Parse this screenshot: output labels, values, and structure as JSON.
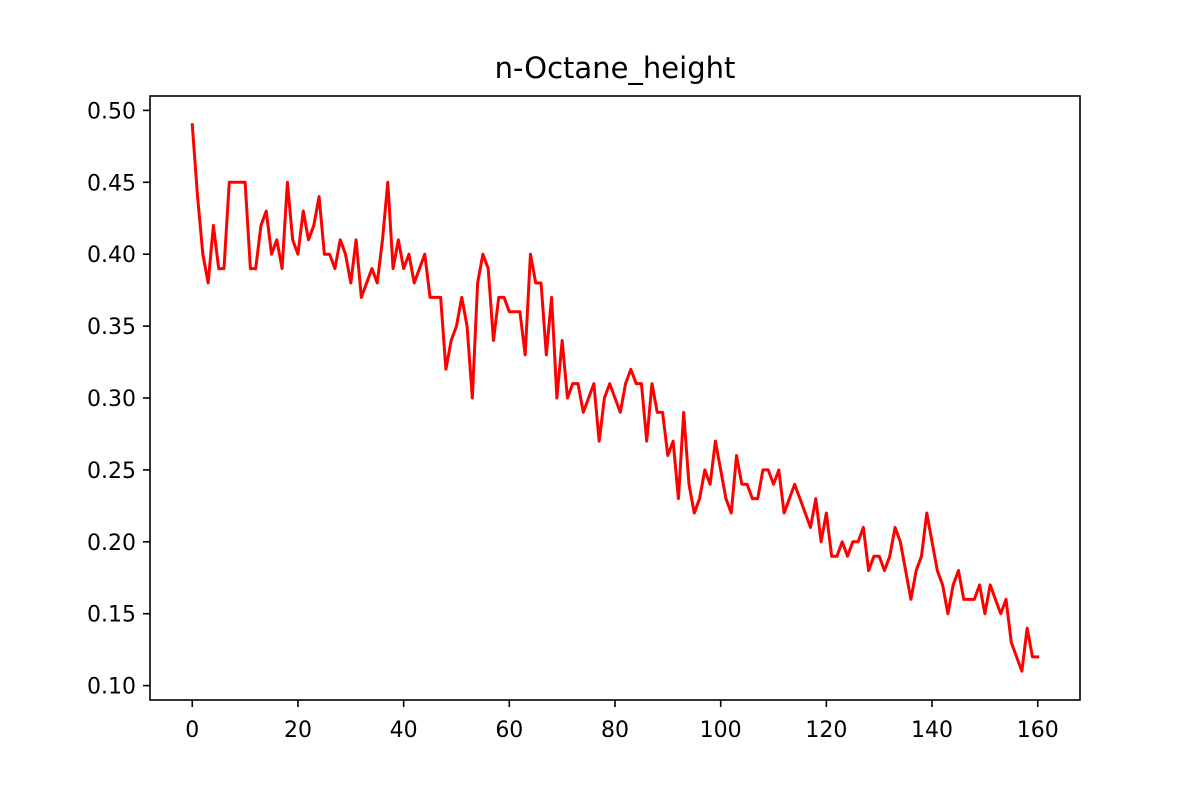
{
  "chart_data": {
    "type": "line",
    "title": "n-Octane_height",
    "xlabel": "",
    "ylabel": "",
    "xlim": [
      -8,
      168
    ],
    "ylim": [
      0.09,
      0.51
    ],
    "xticks": [
      0,
      20,
      40,
      60,
      80,
      100,
      120,
      140,
      160
    ],
    "yticks": [
      0.1,
      0.15,
      0.2,
      0.25,
      0.3,
      0.35,
      0.4,
      0.45,
      0.5
    ],
    "grid": false,
    "series": [
      {
        "color": "#ff0000",
        "x": [
          0,
          1,
          2,
          3,
          4,
          5,
          6,
          7,
          8,
          9,
          10,
          11,
          12,
          13,
          14,
          15,
          16,
          17,
          18,
          19,
          20,
          21,
          22,
          23,
          24,
          25,
          26,
          27,
          28,
          29,
          30,
          31,
          32,
          33,
          34,
          35,
          36,
          37,
          38,
          39,
          40,
          41,
          42,
          43,
          44,
          45,
          46,
          47,
          48,
          49,
          50,
          51,
          52,
          53,
          54,
          55,
          56,
          57,
          58,
          59,
          60,
          61,
          62,
          63,
          64,
          65,
          66,
          67,
          68,
          69,
          70,
          71,
          72,
          73,
          74,
          75,
          76,
          77,
          78,
          79,
          80,
          81,
          82,
          83,
          84,
          85,
          86,
          87,
          88,
          89,
          90,
          91,
          92,
          93,
          94,
          95,
          96,
          97,
          98,
          99,
          100,
          101,
          102,
          103,
          104,
          105,
          106,
          107,
          108,
          109,
          110,
          111,
          112,
          113,
          114,
          115,
          116,
          117,
          118,
          119,
          120,
          121,
          122,
          123,
          124,
          125,
          126,
          127,
          128,
          129,
          130,
          131,
          132,
          133,
          134,
          135,
          136,
          137,
          138,
          139,
          140,
          141,
          142,
          143,
          144,
          145,
          146,
          147,
          148,
          149,
          150,
          151,
          152,
          153,
          154,
          155,
          156,
          157,
          158,
          159,
          160
        ],
        "y": [
          0.49,
          0.44,
          0.4,
          0.38,
          0.42,
          0.39,
          0.39,
          0.45,
          0.45,
          0.45,
          0.45,
          0.39,
          0.39,
          0.42,
          0.43,
          0.4,
          0.41,
          0.39,
          0.45,
          0.41,
          0.4,
          0.43,
          0.41,
          0.42,
          0.44,
          0.4,
          0.4,
          0.39,
          0.41,
          0.4,
          0.38,
          0.41,
          0.37,
          0.38,
          0.39,
          0.38,
          0.41,
          0.45,
          0.39,
          0.41,
          0.39,
          0.4,
          0.38,
          0.39,
          0.4,
          0.37,
          0.37,
          0.37,
          0.32,
          0.34,
          0.35,
          0.37,
          0.35,
          0.3,
          0.38,
          0.4,
          0.39,
          0.34,
          0.37,
          0.37,
          0.36,
          0.36,
          0.36,
          0.33,
          0.4,
          0.38,
          0.38,
          0.33,
          0.37,
          0.3,
          0.34,
          0.3,
          0.31,
          0.31,
          0.29,
          0.3,
          0.31,
          0.27,
          0.3,
          0.31,
          0.3,
          0.29,
          0.31,
          0.32,
          0.31,
          0.31,
          0.27,
          0.31,
          0.29,
          0.29,
          0.26,
          0.27,
          0.23,
          0.29,
          0.24,
          0.22,
          0.23,
          0.25,
          0.24,
          0.27,
          0.25,
          0.23,
          0.22,
          0.26,
          0.24,
          0.24,
          0.23,
          0.23,
          0.25,
          0.25,
          0.24,
          0.25,
          0.22,
          0.23,
          0.24,
          0.23,
          0.22,
          0.21,
          0.23,
          0.2,
          0.22,
          0.19,
          0.19,
          0.2,
          0.19,
          0.2,
          0.2,
          0.21,
          0.18,
          0.19,
          0.19,
          0.18,
          0.19,
          0.21,
          0.2,
          0.18,
          0.16,
          0.18,
          0.19,
          0.22,
          0.2,
          0.18,
          0.17,
          0.15,
          0.17,
          0.18,
          0.16,
          0.16,
          0.16,
          0.17,
          0.15,
          0.17,
          0.16,
          0.15,
          0.16,
          0.13,
          0.12,
          0.11,
          0.14,
          0.12,
          0.12
        ]
      }
    ]
  }
}
